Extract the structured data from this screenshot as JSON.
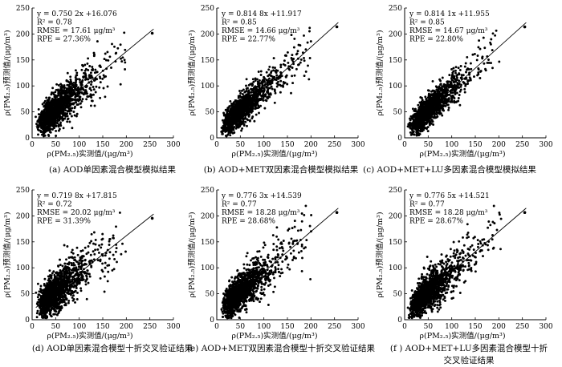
{
  "figure": {
    "y_axis_label": "ρ(PM₂.₅)预测值/(μg/m³)",
    "x_axis_label": "ρ(PM₂.₅)实测值/(μg/m³)"
  },
  "chart_data": [
    {
      "type": "scatter",
      "caption": "(a)  AOD单因素混合模型模拟结果",
      "stats": [
        "y = 0.750 2x +16.076",
        "R² = 0.78",
        "RMSE = 17.61 μg/m³",
        "RPE = 27.36%"
      ],
      "slope": 0.7502,
      "intercept": 16.076,
      "xlim": [
        0,
        300
      ],
      "ylim": [
        0,
        250
      ],
      "xticks": [
        0,
        50,
        100,
        150,
        200,
        250,
        300
      ],
      "yticks": [
        0,
        50,
        100,
        150,
        200,
        250
      ],
      "n_points": 1300,
      "noise_sd": 17.6,
      "seed": 11
    },
    {
      "type": "scatter",
      "caption": "(b)  AOD+MET双因素混合模型模拟结果",
      "stats": [
        "y = 0.814 8x +11.917",
        "R² = 0.85",
        "RMSE = 14.66 μg/m³",
        "RPE = 22.77%"
      ],
      "slope": 0.8148,
      "intercept": 11.917,
      "xlim": [
        0,
        300
      ],
      "ylim": [
        0,
        250
      ],
      "xticks": [
        0,
        50,
        100,
        150,
        200,
        250,
        300
      ],
      "yticks": [
        0,
        50,
        100,
        150,
        200,
        250
      ],
      "n_points": 1300,
      "noise_sd": 14.7,
      "seed": 23
    },
    {
      "type": "scatter",
      "caption": "(c)  AOD+MET+LU多因素混合模型模拟结果",
      "stats": [
        "y = 0.814 1x +11.955",
        "R² = 0.85",
        "RMSE = 14.67 μg/m³",
        "RPE = 22.80%"
      ],
      "slope": 0.8141,
      "intercept": 11.955,
      "xlim": [
        0,
        300
      ],
      "ylim": [
        0,
        250
      ],
      "xticks": [
        0,
        50,
        100,
        150,
        200,
        250,
        300
      ],
      "yticks": [
        0,
        50,
        100,
        150,
        200,
        250
      ],
      "n_points": 1300,
      "noise_sd": 14.7,
      "seed": 37
    },
    {
      "type": "scatter",
      "caption": "(d)  AOD单因素混合模型十折交叉验证结果",
      "stats": [
        "y = 0.719 8x +17.815",
        "R² = 0.72",
        "RMSE = 20.02 μg/m³",
        "RPE = 31.39%"
      ],
      "slope": 0.7198,
      "intercept": 17.815,
      "xlim": [
        0,
        300
      ],
      "ylim": [
        0,
        250
      ],
      "xticks": [
        0,
        50,
        100,
        150,
        200,
        250,
        300
      ],
      "yticks": [
        0,
        50,
        100,
        150,
        200,
        250
      ],
      "n_points": 1300,
      "noise_sd": 20.0,
      "seed": 41
    },
    {
      "type": "scatter",
      "caption": "(e)  AOD+MET双因素混合模型十折交叉验证结果",
      "stats": [
        "y = 0.776 3x +14.539",
        "R² = 0.77",
        "RMSE = 18.28 μg/m³",
        "RPE = 28.68%"
      ],
      "slope": 0.7763,
      "intercept": 14.539,
      "xlim": [
        0,
        300
      ],
      "ylim": [
        0,
        250
      ],
      "xticks": [
        0,
        50,
        100,
        150,
        200,
        250,
        300
      ],
      "yticks": [
        0,
        50,
        100,
        150,
        200,
        250
      ],
      "n_points": 1300,
      "noise_sd": 18.3,
      "seed": 53
    },
    {
      "type": "scatter",
      "caption": "(f )  AOD+MET+LU多因素混合模型十折交叉验证结果",
      "stats": [
        "y = 0.776 5x +14.521",
        "R² = 0.77",
        "RMSE = 18.28 μg/m³",
        "RPE = 28.67%"
      ],
      "slope": 0.7765,
      "intercept": 14.521,
      "xlim": [
        0,
        300
      ],
      "ylim": [
        0,
        250
      ],
      "xticks": [
        0,
        50,
        100,
        150,
        200,
        250,
        300
      ],
      "yticks": [
        0,
        50,
        100,
        150,
        200,
        250
      ],
      "n_points": 1300,
      "noise_sd": 18.3,
      "seed": 67
    }
  ]
}
